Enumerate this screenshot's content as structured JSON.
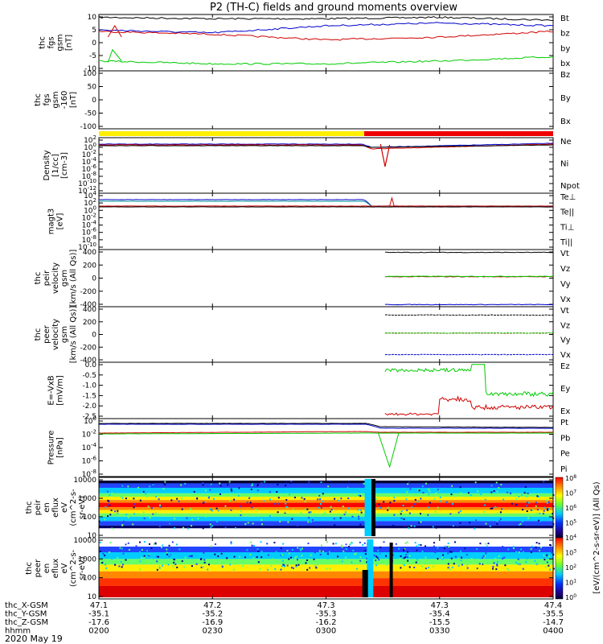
{
  "title": "P2 (TH-C) fields and ground moments overview",
  "date_label": "2020 May 19",
  "footer": {
    "row_labels": [
      "thc_X-GSM",
      "thc_Y-GSM",
      "thc_Z-GSM",
      "hhmm"
    ],
    "columns": [
      [
        "47.1",
        "-35.1",
        "-17.6",
        "0200"
      ],
      [
        "47.2",
        "-35.2",
        "-16.9",
        "0230"
      ],
      [
        "47.3",
        "-35.3",
        "-16.2",
        "0300"
      ],
      [
        "47.3",
        "-35.4",
        "-15.5",
        "0330"
      ],
      [
        "47.4",
        "-35.5",
        "-14.7",
        "0400"
      ]
    ]
  },
  "colors": {
    "black": "#000000",
    "red": "#d00000",
    "green": "#00cc00",
    "blue": "#0000cc",
    "yellow": "#ffee00",
    "status_red": "#ee0000"
  },
  "colorbar": {
    "label": "[eV/(cm^2-s-sr-eV)] (All Qs)",
    "ticks": [
      "10^8",
      "10^7",
      "10^6",
      "10^5",
      "10^4",
      "10^3",
      "10^2",
      "10^1",
      "10^0"
    ]
  },
  "status_bar": {
    "colors": [
      "#ffee00",
      "#ee0000"
    ],
    "switch_time": "0300"
  },
  "chart_data": [
    {
      "type": "line",
      "ylabel": [
        "thc",
        "fgs",
        "gsm",
        "[nT]"
      ],
      "yticks": [
        "10",
        "5",
        "0",
        "-5",
        "-10"
      ],
      "ylim": [
        -10,
        10
      ],
      "legend": [
        {
          "name": "Bt",
          "color": "#000000"
        },
        {
          "name": "bz",
          "color": "#d00000"
        },
        {
          "name": "by",
          "color": "#00cc00"
        },
        {
          "name": "bx",
          "color": "#0000cc"
        }
      ],
      "x": [
        "0200",
        "0230",
        "0300",
        "0330",
        "0400"
      ],
      "series": [
        {
          "name": "Bt",
          "values": [
            9,
            8.5,
            8.5,
            9,
            8
          ]
        },
        {
          "name": "bz",
          "values": [
            4,
            3,
            1,
            2,
            4
          ]
        },
        {
          "name": "by",
          "values": [
            -6.5,
            -7.5,
            -7.5,
            -6.5,
            -5
          ]
        },
        {
          "name": "bx",
          "values": [
            4.5,
            3.5,
            6,
            7,
            6
          ]
        }
      ]
    },
    {
      "type": "line",
      "ylabel": [
        "thc",
        "fgs",
        "gsm",
        "-160",
        "[nT]"
      ],
      "yticks": [
        "100",
        "50",
        "0",
        "-50",
        "-100"
      ],
      "ylim": [
        -120,
        110
      ],
      "legend": [
        {
          "name": "Bz",
          "color": "#d00000"
        },
        {
          "name": "By",
          "color": "#00cc00"
        },
        {
          "name": "Bx",
          "color": "#0000cc"
        }
      ]
    },
    {
      "type": "line",
      "ylabel": [
        "Density",
        "[1/cc]",
        "[cm-3]"
      ],
      "yticks": [
        "10^2",
        "10^0",
        "10^-2",
        "10^-4",
        "10^-6",
        "10^-8",
        "10^-10",
        "10^-12"
      ],
      "legend": [
        {
          "name": "Ne",
          "color": "#d00000"
        },
        {
          "name": "Ni",
          "color": "#000000"
        },
        {
          "name": "Npot",
          "color": "#0000cc"
        }
      ]
    },
    {
      "type": "line",
      "ylabel": [
        "magt3",
        "[eV]"
      ],
      "yticks": [
        "10^4",
        "10^2",
        "10^0",
        "10^-2",
        "10^-4",
        "10^-6",
        "10^-8",
        "10^-10"
      ],
      "legend": [
        {
          "name": "Te⊥",
          "color": "#d00000"
        },
        {
          "name": "Te||",
          "color": "#000000"
        },
        {
          "name": "Ti⊥",
          "color": "#00cc00"
        },
        {
          "name": "Ti||",
          "color": "#00cc00"
        }
      ]
    },
    {
      "type": "line",
      "ylabel": [
        "thc",
        "peir",
        "velocity",
        "gsm",
        "[km/s (All Qs)]"
      ],
      "yticks": [
        "400",
        "200",
        "0",
        "-200",
        "-400"
      ],
      "ylim": [
        -400,
        400
      ],
      "legend": [
        {
          "name": "Vt",
          "color": "#000000"
        },
        {
          "name": "Vz",
          "color": "#d00000"
        },
        {
          "name": "Vy",
          "color": "#00cc00"
        },
        {
          "name": "Vx",
          "color": "#0000cc"
        }
      ]
    },
    {
      "type": "line",
      "ylabel": [
        "thc",
        "peer",
        "velocity",
        "gsm",
        "[km/s (All Qs)]"
      ],
      "yticks": [
        "400",
        "200",
        "0",
        "-200",
        "-400"
      ],
      "ylim": [
        -400,
        400
      ],
      "legend": [
        {
          "name": "Vt",
          "color": "#000000"
        },
        {
          "name": "Vz",
          "color": "#d00000"
        },
        {
          "name": "Vy",
          "color": "#00cc00"
        },
        {
          "name": "Vx",
          "color": "#0000cc"
        }
      ]
    },
    {
      "type": "line",
      "ylabel": [
        "E=-VxB",
        "[mV/m]"
      ],
      "yticks": [
        "0.0",
        "-0.5",
        "-1.0",
        "-1.5",
        "-2.0",
        "-2.5"
      ],
      "ylim": [
        -2.5,
        0
      ],
      "legend": [
        {
          "name": "Ez",
          "color": "#d00000"
        },
        {
          "name": "Ey",
          "color": "#00cc00"
        },
        {
          "name": "Ex",
          "color": "#0000cc"
        }
      ]
    },
    {
      "type": "line",
      "ylabel": [
        "Pressure",
        "[nPa]"
      ],
      "yticks": [
        "10^0",
        "10^-2",
        "10^-4",
        "10^-6",
        "10^-8"
      ],
      "legend": [
        {
          "name": "Pt",
          "color": "#000000"
        },
        {
          "name": "Pb",
          "color": "#d00000"
        },
        {
          "name": "Pe",
          "color": "#00cc00"
        },
        {
          "name": "Pi",
          "color": "#0000cc"
        }
      ]
    },
    {
      "type": "heatmap",
      "ylabel": [
        "thc",
        "peir",
        "en",
        "eflux",
        "eV",
        "(cm^2-s-",
        "sr-eV)"
      ],
      "yticks": [
        "10000",
        "1000",
        "100",
        "10"
      ]
    },
    {
      "type": "heatmap",
      "ylabel": [
        "thc",
        "peer",
        "en",
        "eflux",
        "eV",
        "(cm^2-s-",
        "sr-eV)"
      ],
      "yticks": [
        "10000",
        "1000",
        "100",
        "10"
      ]
    }
  ]
}
